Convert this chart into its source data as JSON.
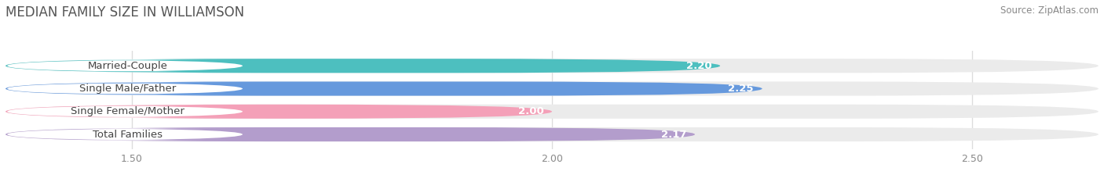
{
  "title": "MEDIAN FAMILY SIZE IN WILLIAMSON",
  "source": "Source: ZipAtlas.com",
  "categories": [
    "Married-Couple",
    "Single Male/Father",
    "Single Female/Mother",
    "Total Families"
  ],
  "values": [
    2.2,
    2.25,
    2.0,
    2.17
  ],
  "bar_colors": [
    "#4dbfbf",
    "#6699dd",
    "#f4a0b8",
    "#b39dcc"
  ],
  "xlim": [
    1.35,
    2.65
  ],
  "xticks": [
    1.5,
    2.0,
    2.5
  ],
  "bar_height": 0.62,
  "background_color": "#ffffff",
  "bar_bg_color": "#ebebeb",
  "label_fontsize": 9.5,
  "value_fontsize": 9.5,
  "title_fontsize": 12,
  "source_fontsize": 8.5
}
